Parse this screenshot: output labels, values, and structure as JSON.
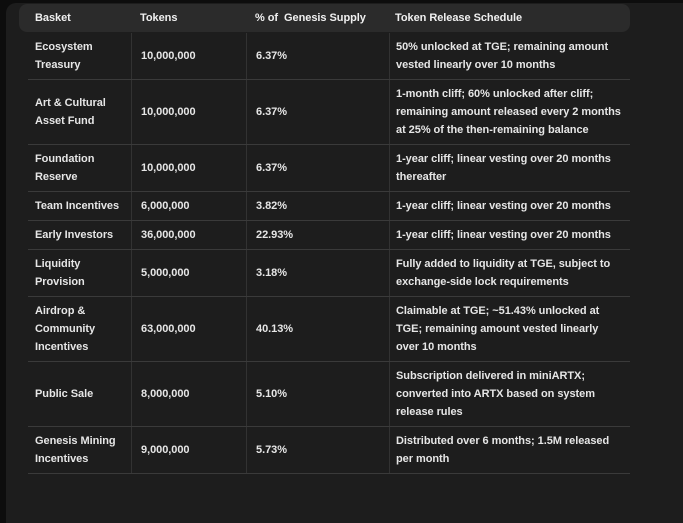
{
  "colors": {
    "page_bg": "#0d0d0d",
    "panel_bg": "#1d1d1d",
    "header_bg": "#2b2b2b",
    "divider_h": "#3a3a3a",
    "divider_v": "#323232",
    "header_text": "#f0f0f0",
    "body_text": "#e6e6e6"
  },
  "table": {
    "columns": [
      "Basket",
      "Tokens",
      "% of  Genesis Supply",
      "Token Release Schedule"
    ],
    "rows": [
      {
        "basket": "Ecosystem Treasury",
        "tokens": "10,000,000",
        "pct": "6.37%",
        "schedule": "50% unlocked at TGE; remaining amount vested linearly over 10 months"
      },
      {
        "basket": "Art & Cultural Asset Fund",
        "tokens": "10,000,000",
        "pct": "6.37%",
        "schedule": "1-month cliff; 60% unlocked after cliff; remaining amount released every 2 months at 25% of the then-remaining balance"
      },
      {
        "basket": "Foundation Reserve",
        "tokens": "10,000,000",
        "pct": "6.37%",
        "schedule": "1-year cliff; linear vesting over 20 months thereafter"
      },
      {
        "basket": "Team Incentives",
        "tokens": "6,000,000",
        "pct": "3.82%",
        "schedule": "1-year cliff; linear vesting over 20 months"
      },
      {
        "basket": "Early Investors",
        "tokens": "36,000,000",
        "pct": "22.93%",
        "schedule": "1-year cliff; linear vesting over 20 months"
      },
      {
        "basket": "Liquidity Provision",
        "tokens": "5,000,000",
        "pct": "3.18%",
        "schedule": "Fully added to liquidity at TGE, subject to exchange-side lock requirements"
      },
      {
        "basket": "Airdrop & Community Incentives",
        "tokens": "63,000,000",
        "pct": "40.13%",
        "schedule": "Claimable at TGE; ~51.43% unlocked at TGE; remaining amount vested linearly over 10 months"
      },
      {
        "basket": "Public Sale",
        "tokens": "8,000,000",
        "pct": "5.10%",
        "schedule": "Subscription delivered in miniARTX; converted into ARTX based on system release rules"
      },
      {
        "basket": "Genesis Mining Incentives",
        "tokens": "9,000,000",
        "pct": "5.73%",
        "schedule": "Distributed over 6 months; 1.5M released per month"
      }
    ]
  }
}
